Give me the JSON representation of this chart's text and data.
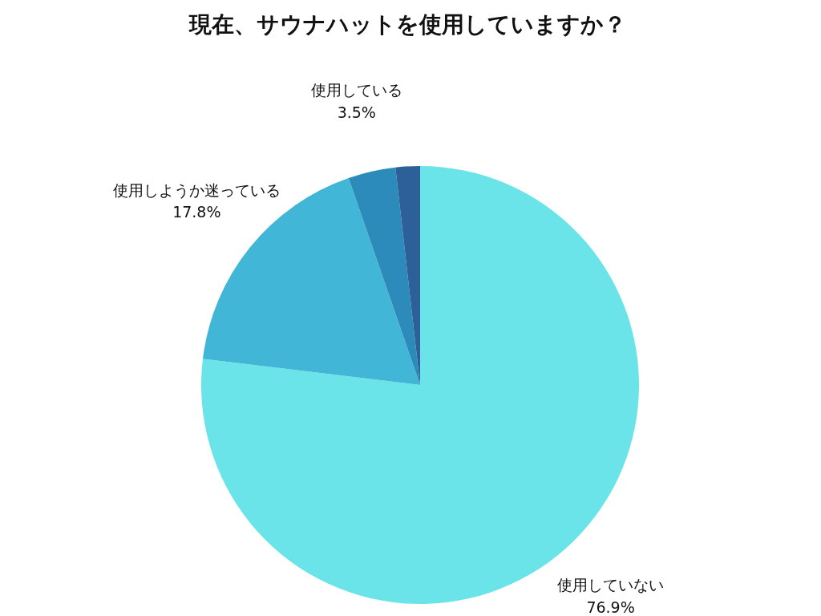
{
  "chart_data": {
    "type": "pie",
    "title": "現在、サウナハットを使用していますか？",
    "categories": [
      "使用していない",
      "使用しようか迷っている",
      "使用している",
      null
    ],
    "values": [
      76.9,
      17.8,
      3.5,
      1.8
    ],
    "value_labels": [
      "76.9%",
      "17.8%",
      "3.5%",
      null
    ],
    "colors": [
      "#6ae4e8",
      "#42b6d6",
      "#2c8bba",
      "#2d5f98"
    ],
    "legend": false
  }
}
